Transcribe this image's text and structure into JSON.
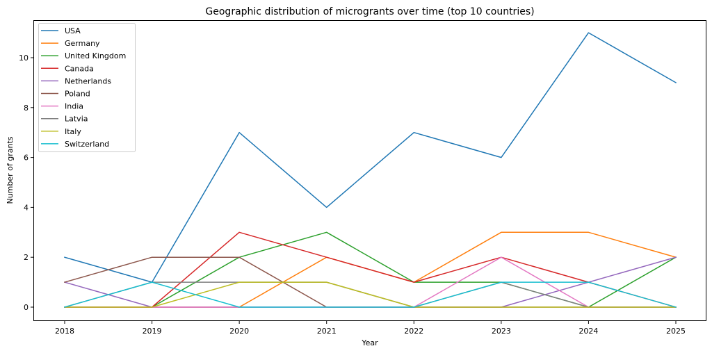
{
  "chart_data": {
    "type": "line",
    "title": "Geographic distribution of microgrants over time (top 10 countries)",
    "xlabel": "Year",
    "ylabel": "Number of grants",
    "x": [
      2018,
      2019,
      2020,
      2021,
      2022,
      2023,
      2024,
      2025
    ],
    "x_ticks": [
      "2018",
      "2019",
      "2020",
      "2021",
      "2022",
      "2023",
      "2024",
      "2025"
    ],
    "y_ticks": [
      0,
      2,
      4,
      6,
      8,
      10
    ],
    "ylim": [
      -0.55,
      11.55
    ],
    "grid": false,
    "legend_position": "upper left",
    "series": [
      {
        "name": "USA",
        "color": "#1f77b4",
        "values": [
          2,
          1,
          7,
          4,
          7,
          6,
          11,
          9
        ]
      },
      {
        "name": "Germany",
        "color": "#ff7f0e",
        "values": [
          0,
          0,
          0,
          2,
          1,
          3,
          3,
          2
        ]
      },
      {
        "name": "United Kingdom",
        "color": "#2ca02c",
        "values": [
          0,
          0,
          2,
          3,
          1,
          1,
          0,
          2
        ]
      },
      {
        "name": "Canada",
        "color": "#d62728",
        "values": [
          0,
          0,
          3,
          2,
          1,
          2,
          1,
          0
        ]
      },
      {
        "name": "Netherlands",
        "color": "#9467bd",
        "values": [
          1,
          0,
          0,
          0,
          0,
          0,
          1,
          2
        ]
      },
      {
        "name": "Poland",
        "color": "#8c564b",
        "values": [
          1,
          2,
          2,
          0,
          0,
          0,
          0,
          0
        ]
      },
      {
        "name": "India",
        "color": "#e377c2",
        "values": [
          0,
          0,
          0,
          0,
          0,
          2,
          0,
          0
        ]
      },
      {
        "name": "Latvia",
        "color": "#7f7f7f",
        "values": [
          0,
          1,
          1,
          1,
          0,
          1,
          0,
          0
        ]
      },
      {
        "name": "Italy",
        "color": "#bcbd22",
        "values": [
          0,
          0,
          1,
          1,
          0,
          0,
          0,
          0
        ]
      },
      {
        "name": "Switzerland",
        "color": "#17becf",
        "values": [
          0,
          1,
          0,
          0,
          0,
          1,
          1,
          0
        ]
      }
    ]
  }
}
